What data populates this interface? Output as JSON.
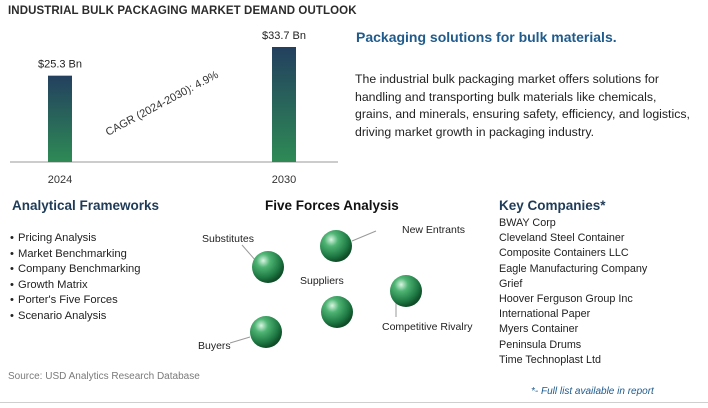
{
  "title": "INDUSTRIAL BULK PACKAGING MARKET DEMAND OUTLOOK",
  "chart_data": {
    "type": "bar",
    "categories": [
      "2024",
      "2030"
    ],
    "values": [
      25.3,
      33.7
    ],
    "value_labels": [
      "$25.3 Bn",
      "$33.7 Bn"
    ],
    "annotation": {
      "label": "CAGR (2024-2030):",
      "value": "4.9%"
    },
    "ylim": [
      0,
      33.7
    ],
    "grid": false,
    "bar_gradient": [
      "#23405f",
      "#2e8a55"
    ]
  },
  "headline": "Packaging solutions for bulk materials.",
  "description": "The industrial bulk packaging market offers solutions for handling and transporting bulk materials like chemicals, grains, and minerals, ensuring safety, efficiency, and logistics, driving market growth in packaging industry.",
  "frameworks": {
    "title": "Analytical Frameworks",
    "items": [
      "Pricing Analysis",
      "Market Benchmarking",
      "Company Benchmarking",
      "Growth Matrix",
      "Porter's Five Forces",
      "Scenario Analysis"
    ]
  },
  "five_forces": {
    "title": "Five Forces Analysis",
    "forces": [
      "Substitutes",
      "New Entrants",
      "Suppliers",
      "Competitive Rivalry",
      "Buyers"
    ]
  },
  "companies": {
    "title": "Key Companies*",
    "items": [
      "BWAY Corp",
      "Cleveland Steel Container",
      "Composite Containers LLC",
      "Eagle Manufacturing Company",
      "Grief",
      "Hoover Ferguson Group Inc",
      "International Paper",
      "Myers Container",
      "Peninsula Drums",
      "Time Technoplast Ltd"
    ]
  },
  "source": "Source: USD Analytics Research Database",
  "footnote": "*- Full list available in report",
  "colors": {
    "heading_blue": "#1f5b8c",
    "sphere_green": "#2e8a55",
    "axis": "#9a9a9a"
  }
}
